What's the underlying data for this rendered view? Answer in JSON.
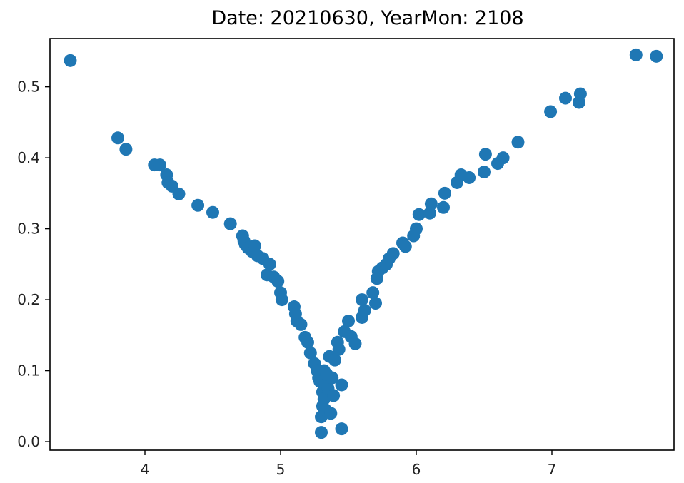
{
  "chart_data": {
    "type": "scatter",
    "title": "Date: 20210630, YearMon: 2108",
    "xlabel": "",
    "ylabel": "",
    "xlim": [
      3.3,
      7.9
    ],
    "ylim": [
      -0.012,
      0.568
    ],
    "x_ticks": [
      4,
      5,
      6,
      7
    ],
    "x_tick_labels": [
      "4",
      "5",
      "6",
      "7"
    ],
    "y_ticks": [
      0.0,
      0.1,
      0.2,
      0.3,
      0.4,
      0.5
    ],
    "y_tick_labels": [
      "0.0",
      "0.1",
      "0.2",
      "0.3",
      "0.4",
      "0.5"
    ],
    "grid": false,
    "marker_color": "#1f77b4",
    "series": [
      {
        "x": [
          3.45,
          3.8,
          3.86,
          4.07,
          4.11,
          4.16,
          4.17,
          4.2,
          4.25,
          4.39,
          4.5,
          4.63,
          4.72,
          4.73,
          4.74,
          4.76,
          4.79,
          4.81,
          4.83,
          4.87,
          4.9,
          4.92,
          4.95,
          4.98,
          5.0,
          5.01,
          5.1,
          5.11,
          5.12,
          5.15,
          5.18,
          5.2,
          5.22,
          5.25,
          5.27,
          5.28,
          5.29,
          5.3,
          5.3,
          5.31,
          5.31,
          5.32,
          5.32,
          5.33,
          5.33,
          5.34,
          5.35,
          5.36,
          5.37,
          5.38,
          5.39,
          5.4,
          5.42,
          5.43,
          5.45,
          5.45,
          5.47,
          5.5,
          5.52,
          5.55,
          5.6,
          5.6,
          5.62,
          5.68,
          5.7,
          5.71,
          5.72,
          5.75,
          5.78,
          5.8,
          5.83,
          5.9,
          5.92,
          5.98,
          6.0,
          6.02,
          6.1,
          6.11,
          6.2,
          6.21,
          6.3,
          6.33,
          6.39,
          6.5,
          6.51,
          6.6,
          6.64,
          6.75,
          6.99,
          7.1,
          7.2,
          7.21,
          7.62,
          7.77
        ],
        "y": [
          0.537,
          0.428,
          0.412,
          0.39,
          0.39,
          0.376,
          0.365,
          0.36,
          0.349,
          0.333,
          0.323,
          0.307,
          0.29,
          0.283,
          0.278,
          0.273,
          0.268,
          0.276,
          0.262,
          0.258,
          0.235,
          0.25,
          0.232,
          0.226,
          0.21,
          0.2,
          0.19,
          0.18,
          0.17,
          0.165,
          0.147,
          0.14,
          0.125,
          0.11,
          0.1,
          0.09,
          0.085,
          0.035,
          0.013,
          0.07,
          0.05,
          0.1,
          0.06,
          0.045,
          0.08,
          0.095,
          0.075,
          0.12,
          0.04,
          0.09,
          0.065,
          0.115,
          0.14,
          0.13,
          0.08,
          0.018,
          0.155,
          0.17,
          0.148,
          0.138,
          0.2,
          0.175,
          0.185,
          0.21,
          0.195,
          0.23,
          0.24,
          0.245,
          0.25,
          0.258,
          0.265,
          0.28,
          0.275,
          0.29,
          0.3,
          0.32,
          0.322,
          0.335,
          0.33,
          0.35,
          0.365,
          0.376,
          0.372,
          0.38,
          0.405,
          0.392,
          0.4,
          0.422,
          0.465,
          0.484,
          0.478,
          0.49,
          0.545,
          0.543
        ]
      }
    ]
  }
}
